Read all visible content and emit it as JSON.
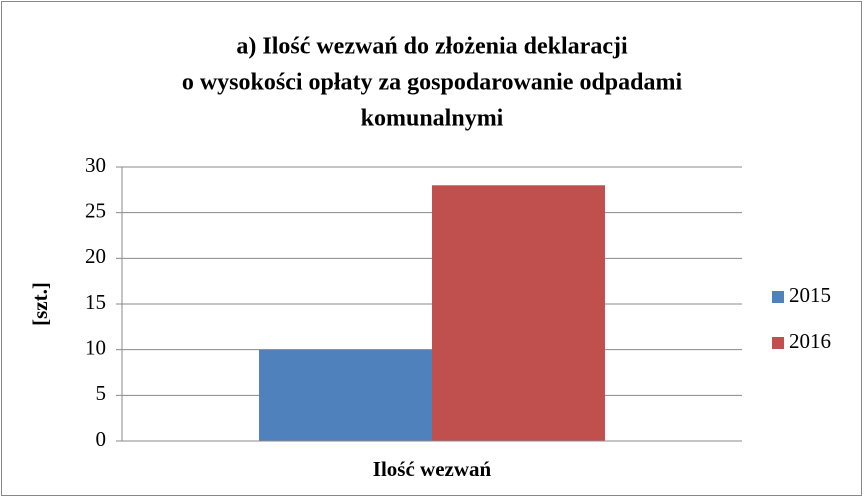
{
  "chart_data": {
    "type": "bar",
    "title": [
      "a) Ilość wezwań do złożenia deklaracji",
      "o wysokości opłaty za gospodarowanie odpadami",
      "komunalnymi"
    ],
    "y_label": "[szt.]",
    "categories": [
      "Ilość wezwań"
    ],
    "series": [
      {
        "name": "2015",
        "color": "#4f81bd",
        "values": [
          10
        ]
      },
      {
        "name": "2016",
        "color": "#c0504d",
        "values": [
          28
        ]
      }
    ],
    "ylim": [
      0,
      30
    ],
    "yticks": [
      0,
      5,
      10,
      15,
      20,
      25,
      30
    ],
    "grid": true,
    "legend": "right"
  }
}
